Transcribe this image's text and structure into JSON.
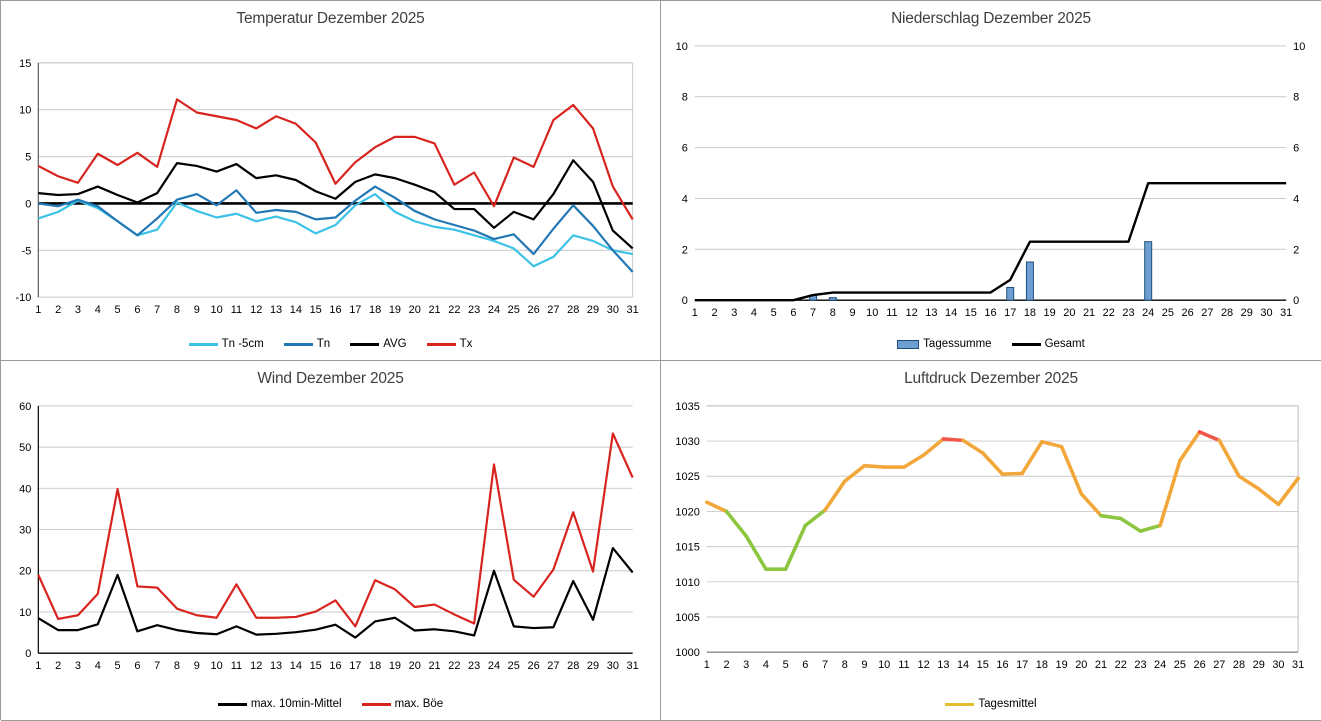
{
  "page": {
    "background": "#FFFFFF",
    "panel_border": "#9B9B9B",
    "grid_color": "#C9C9C9",
    "title_color": "#404040"
  },
  "chart_data": [
    {
      "type": "line",
      "title": "Temperatur Dezember 2025",
      "x": [
        1,
        2,
        3,
        4,
        5,
        6,
        7,
        8,
        9,
        10,
        11,
        12,
        13,
        14,
        15,
        16,
        17,
        18,
        19,
        20,
        21,
        22,
        23,
        24,
        25,
        26,
        27,
        28,
        29,
        30,
        31
      ],
      "ylim": [
        -10,
        15
      ],
      "ytick": 5,
      "yticks": [
        -10,
        -5,
        0,
        5,
        10,
        15
      ],
      "grid": true,
      "zero_line": true,
      "legend_position": "bottom",
      "series": [
        {
          "name": "Tn -5cm",
          "color": "#3BC2E6",
          "values": [
            -1.6,
            -0.9,
            0.3,
            -0.5,
            -1.9,
            -3.4,
            -2.8,
            0.1,
            -0.8,
            -1.5,
            -1.1,
            -1.9,
            -1.4,
            -2.0,
            -3.2,
            -2.3,
            -0.2,
            1.0,
            -0.9,
            -1.9,
            -2.5,
            -2.8,
            -3.4,
            -4.0,
            -4.8,
            -6.7,
            -5.7,
            -3.4,
            -4.0,
            -5.0,
            -5.4
          ]
        },
        {
          "name": "Tn",
          "color": "#2277B5",
          "values": [
            0.0,
            -0.3,
            0.4,
            -0.3,
            -1.9,
            -3.4,
            -1.6,
            0.4,
            1.0,
            -0.2,
            1.4,
            -1.0,
            -0.7,
            -0.9,
            -1.7,
            -1.5,
            0.3,
            1.8,
            0.6,
            -0.8,
            -1.7,
            -2.3,
            -2.9,
            -3.8,
            -3.3,
            -5.4,
            -2.7,
            -0.2,
            -2.4,
            -5.0,
            -7.3
          ]
        },
        {
          "name": "AVG",
          "color": "#000000",
          "values": [
            1.1,
            0.9,
            1.0,
            1.8,
            0.9,
            0.1,
            1.1,
            4.3,
            4.0,
            3.4,
            4.2,
            2.7,
            3.0,
            2.5,
            1.3,
            0.5,
            2.3,
            3.1,
            2.7,
            2.0,
            1.2,
            -0.6,
            -0.6,
            -2.6,
            -0.9,
            -1.7,
            1.0,
            4.6,
            2.3,
            -2.9,
            -4.8
          ]
        },
        {
          "name": "Tx",
          "color": "#D8241F",
          "values": [
            4.0,
            2.9,
            2.2,
            5.3,
            4.1,
            5.4,
            3.9,
            11.1,
            9.7,
            9.3,
            8.9,
            8.0,
            9.3,
            8.5,
            6.5,
            2.1,
            4.4,
            6.0,
            7.1,
            7.1,
            6.4,
            2.0,
            3.3,
            -0.3,
            4.9,
            3.9,
            8.9,
            10.5,
            8.0,
            1.8,
            -1.7
          ]
        }
      ]
    },
    {
      "type": "bar+line",
      "title": "Niederschlag Dezember 2025",
      "x": [
        1,
        2,
        3,
        4,
        5,
        6,
        7,
        8,
        9,
        10,
        11,
        12,
        13,
        14,
        15,
        16,
        17,
        18,
        19,
        20,
        21,
        22,
        23,
        24,
        25,
        26,
        27,
        28,
        29,
        30,
        31
      ],
      "ylim": [
        0,
        10
      ],
      "ytick": 2,
      "yticks": [
        0,
        2,
        4,
        6,
        8,
        10
      ],
      "dual_axis": true,
      "left_axis_color": "#2E75B6",
      "right_axis_color": "#000000",
      "legend_position": "bottom",
      "series": [
        {
          "name": "Tagessumme",
          "kind": "bar",
          "color": "#6D9FD2",
          "border": "#1F4E79",
          "values": [
            0,
            0,
            0,
            0,
            0,
            0,
            0.2,
            0.1,
            0,
            0,
            0,
            0,
            0,
            0,
            0,
            0,
            0.5,
            1.5,
            0,
            0,
            0,
            0,
            0,
            2.3,
            0,
            0,
            0,
            0,
            0,
            0,
            0
          ]
        },
        {
          "name": "Gesamt",
          "kind": "line",
          "color": "#000000",
          "values": [
            0,
            0,
            0,
            0,
            0,
            0,
            0.2,
            0.3,
            0.3,
            0.3,
            0.3,
            0.3,
            0.3,
            0.3,
            0.3,
            0.3,
            0.8,
            2.3,
            2.3,
            2.3,
            2.3,
            2.3,
            2.3,
            4.6,
            4.6,
            4.6,
            4.6,
            4.6,
            4.6,
            4.6,
            4.6
          ]
        }
      ]
    },
    {
      "type": "line",
      "title": "Wind Dezember 2025",
      "x": [
        1,
        2,
        3,
        4,
        5,
        6,
        7,
        8,
        9,
        10,
        11,
        12,
        13,
        14,
        15,
        16,
        17,
        18,
        19,
        20,
        21,
        22,
        23,
        24,
        25,
        26,
        27,
        28,
        29,
        30,
        31
      ],
      "ylim": [
        0,
        60
      ],
      "ytick": 10,
      "yticks": [
        0,
        10,
        20,
        30,
        40,
        50,
        60
      ],
      "grid": true,
      "legend_position": "bottom",
      "series": [
        {
          "name": "max. 10min-Mittel",
          "color": "#000000",
          "values": [
            8.5,
            5.6,
            5.6,
            7.0,
            19.0,
            5.3,
            6.8,
            5.6,
            4.9,
            4.6,
            6.5,
            4.5,
            4.7,
            5.1,
            5.7,
            6.9,
            3.8,
            7.7,
            8.6,
            5.5,
            5.8,
            5.3,
            4.3,
            20.0,
            6.5,
            6.1,
            6.3,
            17.5,
            8.1,
            25.5,
            19.6
          ]
        },
        {
          "name": "max. Böe",
          "color": "#D8241F",
          "values": [
            19.0,
            8.3,
            9.2,
            14.4,
            39.8,
            16.2,
            15.9,
            10.8,
            9.2,
            8.6,
            16.7,
            8.6,
            8.6,
            8.8,
            10.1,
            12.8,
            6.5,
            17.7,
            15.5,
            11.2,
            11.8,
            9.4,
            7.2,
            45.8,
            17.8,
            13.7,
            20.3,
            34.2,
            19.8,
            53.3,
            42.6
          ]
        }
      ]
    },
    {
      "type": "line-multicolor",
      "title": "Luftdruck Dezember 2025",
      "x": [
        1,
        2,
        3,
        4,
        5,
        6,
        7,
        8,
        9,
        10,
        11,
        12,
        13,
        14,
        15,
        16,
        17,
        18,
        19,
        20,
        21,
        22,
        23,
        24,
        25,
        26,
        27,
        28,
        29,
        30,
        31
      ],
      "ylim": [
        1000,
        1035
      ],
      "ytick": 5,
      "yticks": [
        1000,
        1005,
        1010,
        1015,
        1020,
        1025,
        1030,
        1035
      ],
      "grid": true,
      "legend_position": "bottom",
      "series": [
        {
          "name": "Tagesmittel",
          "color": "#F2A73B",
          "color_low": "#8CC63F",
          "color_high": "#F0564A",
          "legend_color": "#E2BE2E",
          "values": [
            1021.3,
            1020.0,
            1016.5,
            1011.8,
            1011.8,
            1018.0,
            1020.2,
            1024.3,
            1026.5,
            1026.3,
            1026.3,
            1028.0,
            1030.3,
            1030.1,
            1028.3,
            1025.3,
            1025.4,
            1029.9,
            1029.2,
            1022.5,
            1019.4,
            1019.0,
            1017.2,
            1018.0,
            1027.2,
            1031.3,
            1030.1,
            1025.0,
            1023.2,
            1021.0,
            1024.7
          ]
        }
      ]
    }
  ]
}
